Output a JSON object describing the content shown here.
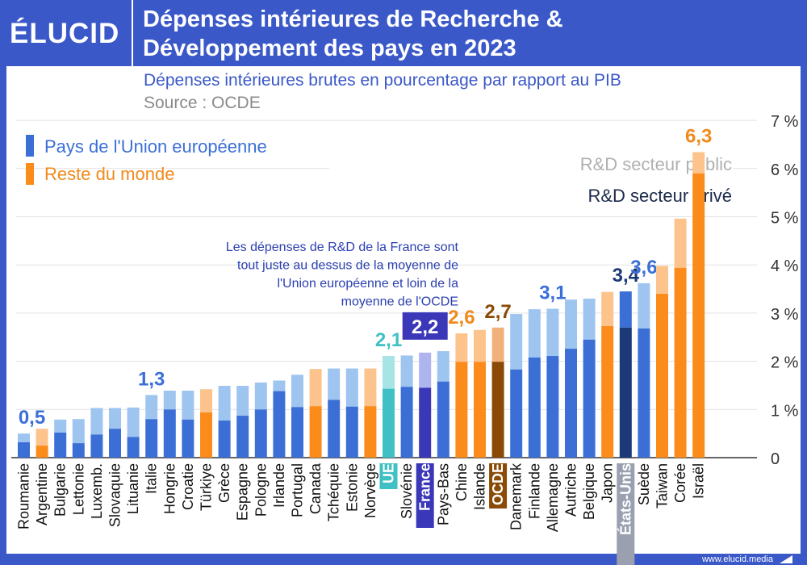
{
  "header": {
    "logo": "ÉLUCID",
    "title_line1": "Dépenses intérieures de Recherche &",
    "title_line2": "Développement des pays en 2023"
  },
  "subtitle": "Dépenses intérieures brutes en pourcentage par rapport au PIB",
  "source": "Source : OCDE",
  "footer": {
    "site": "www.elucid.media"
  },
  "colors": {
    "eu_private": "#3b6fd6",
    "eu_public": "#9ec4f0",
    "world_private": "#fb8c1c",
    "world_public": "#fcc48c",
    "ue_private": "#3fc0c4",
    "ue_public": "#a6e4e6",
    "france_private": "#3a37b8",
    "france_public": "#aeb4ee",
    "ocde_private": "#8a4a06",
    "ocde_public": "#f0b27a",
    "us_private": "#1c3a78",
    "us_public": "#3b6fd6"
  },
  "chart_data": {
    "type": "bar",
    "stacked": true,
    "title": "Dépenses intérieures de Recherche & Développement des pays en 2023",
    "ylabel": "Dépenses intérieures brutes en pourcentage par rapport au PIB",
    "ylim": [
      0,
      7
    ],
    "yticks": [
      "0",
      "1 %",
      "2 %",
      "3 %",
      "4 %",
      "5 %",
      "6 %",
      "7 %"
    ],
    "legend": {
      "groups": [
        {
          "label": "Pays de l'Union européenne",
          "color": "#3b6fd6"
        },
        {
          "label": "Reste du monde",
          "color": "#fb8c1c"
        }
      ],
      "sectors": [
        "R&D secteur public",
        "R&D secteur privé"
      ]
    },
    "annotation": "Les dépenses de R&D de la France sont tout juste au dessus de la moyenne de l'Union européenne et loin de la moyenne de l'OCDE",
    "series": [
      {
        "name": "R&D secteur privé"
      },
      {
        "name": "R&D secteur public"
      }
    ],
    "categories": [
      {
        "name": "Roumanie",
        "group": "eu",
        "private": 0.32,
        "total": 0.5,
        "label": "0,5"
      },
      {
        "name": "Argentine",
        "group": "world",
        "private": 0.25,
        "total": 0.6
      },
      {
        "name": "Bulgarie",
        "group": "eu",
        "private": 0.52,
        "total": 0.79
      },
      {
        "name": "Lettonie",
        "group": "eu",
        "private": 0.3,
        "total": 0.8
      },
      {
        "name": "Luxemb.",
        "group": "eu",
        "private": 0.48,
        "total": 1.03
      },
      {
        "name": "Slovaquie",
        "group": "eu",
        "private": 0.6,
        "total": 1.03
      },
      {
        "name": "Lituanie",
        "group": "eu",
        "private": 0.43,
        "total": 1.04
      },
      {
        "name": "Italie",
        "group": "eu",
        "private": 0.8,
        "total": 1.3,
        "label": "1,3"
      },
      {
        "name": "Hongrie",
        "group": "eu",
        "private": 1.0,
        "total": 1.39
      },
      {
        "name": "Croatie",
        "group": "eu",
        "private": 0.79,
        "total": 1.39
      },
      {
        "name": "Türkiye",
        "group": "world",
        "private": 0.94,
        "total": 1.42
      },
      {
        "name": "Grèce",
        "group": "eu",
        "private": 0.77,
        "total": 1.49
      },
      {
        "name": "Espagne",
        "group": "eu",
        "private": 0.87,
        "total": 1.49
      },
      {
        "name": "Pologne",
        "group": "eu",
        "private": 1.0,
        "total": 1.56
      },
      {
        "name": "Irlande",
        "group": "eu",
        "private": 1.38,
        "total": 1.6
      },
      {
        "name": "Portugal",
        "group": "eu",
        "private": 1.05,
        "total": 1.72
      },
      {
        "name": "Canada",
        "group": "world",
        "private": 1.07,
        "total": 1.84
      },
      {
        "name": "Tchéquie",
        "group": "eu",
        "private": 1.2,
        "total": 1.85
      },
      {
        "name": "Estonie",
        "group": "eu",
        "private": 1.06,
        "total": 1.85
      },
      {
        "name": "Norvège",
        "group": "world",
        "private": 1.07,
        "total": 1.85
      },
      {
        "name": "UE",
        "group": "ue",
        "private": 1.43,
        "total": 2.11,
        "label": "2,1",
        "highlight": true
      },
      {
        "name": "Slovénie",
        "group": "eu",
        "private": 1.47,
        "total": 2.12
      },
      {
        "name": "France",
        "group": "france",
        "private": 1.45,
        "total": 2.18,
        "label": "2,2",
        "highlight": true
      },
      {
        "name": "Pays-Bas",
        "group": "eu",
        "private": 1.58,
        "total": 2.21
      },
      {
        "name": "Chine",
        "group": "world",
        "private": 1.99,
        "total": 2.58,
        "label": "2,6"
      },
      {
        "name": "Islande",
        "group": "world",
        "private": 1.99,
        "total": 2.65
      },
      {
        "name": "OCDE",
        "group": "ocde",
        "private": 1.99,
        "total": 2.7,
        "label": "2,7",
        "highlight": true
      },
      {
        "name": "Danemark",
        "group": "eu",
        "private": 1.83,
        "total": 2.98
      },
      {
        "name": "Finlande",
        "group": "eu",
        "private": 2.08,
        "total": 3.08
      },
      {
        "name": "Allemagne",
        "group": "eu",
        "private": 2.11,
        "total": 3.09,
        "label": "3,1"
      },
      {
        "name": "Autriche",
        "group": "eu",
        "private": 2.26,
        "total": 3.28
      },
      {
        "name": "Belgique",
        "group": "eu",
        "private": 2.45,
        "total": 3.3
      },
      {
        "name": "Japon",
        "group": "world",
        "private": 2.73,
        "total": 3.44
      },
      {
        "name": "États-Unis",
        "group": "us",
        "private": 2.7,
        "total": 3.45,
        "label": "3,4",
        "highlight": true
      },
      {
        "name": "Suède",
        "group": "eu",
        "private": 2.68,
        "total": 3.62,
        "label": "3,6"
      },
      {
        "name": "Taiwan",
        "group": "world",
        "private": 3.4,
        "total": 3.98
      },
      {
        "name": "Corée",
        "group": "world",
        "private": 3.94,
        "total": 4.96
      },
      {
        "name": "Israël",
        "group": "world",
        "private": 5.9,
        "total": 6.34,
        "label": "6,3"
      }
    ]
  }
}
